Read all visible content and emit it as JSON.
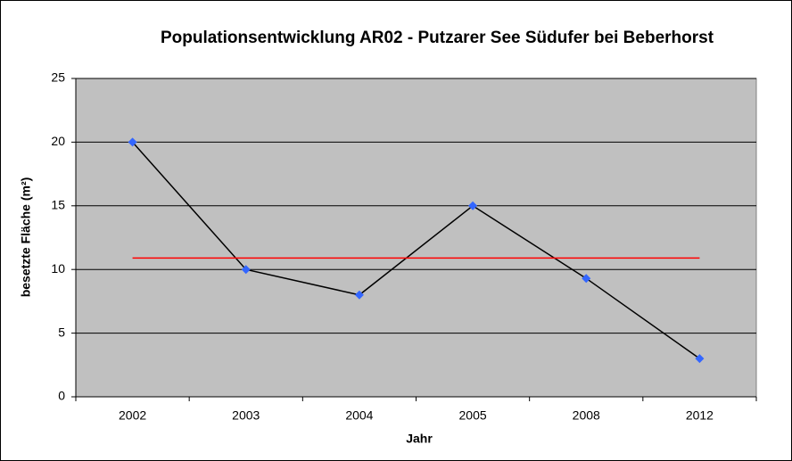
{
  "chart_data": {
    "type": "line",
    "title": "Populationsentwicklung AR02 - Putzarer See Südufer bei Beberhorst",
    "x_label": "Jahr",
    "y_label": "besetzte Fläche (m²)",
    "categories": [
      "2002",
      "2003",
      "2004",
      "2005",
      "2008",
      "2012"
    ],
    "series": [
      {
        "color": "#000000",
        "marker_color": "#3366ff",
        "values": [
          20,
          10,
          8,
          15,
          9.3,
          3
        ]
      },
      {
        "color": "#ff0000",
        "values": [
          10.9,
          10.9,
          10.9,
          10.9,
          10.9,
          10.9
        ]
      }
    ],
    "ylim": [
      0,
      25
    ],
    "yticks": [
      0,
      5,
      10,
      15,
      20,
      25
    ],
    "grid": true
  }
}
